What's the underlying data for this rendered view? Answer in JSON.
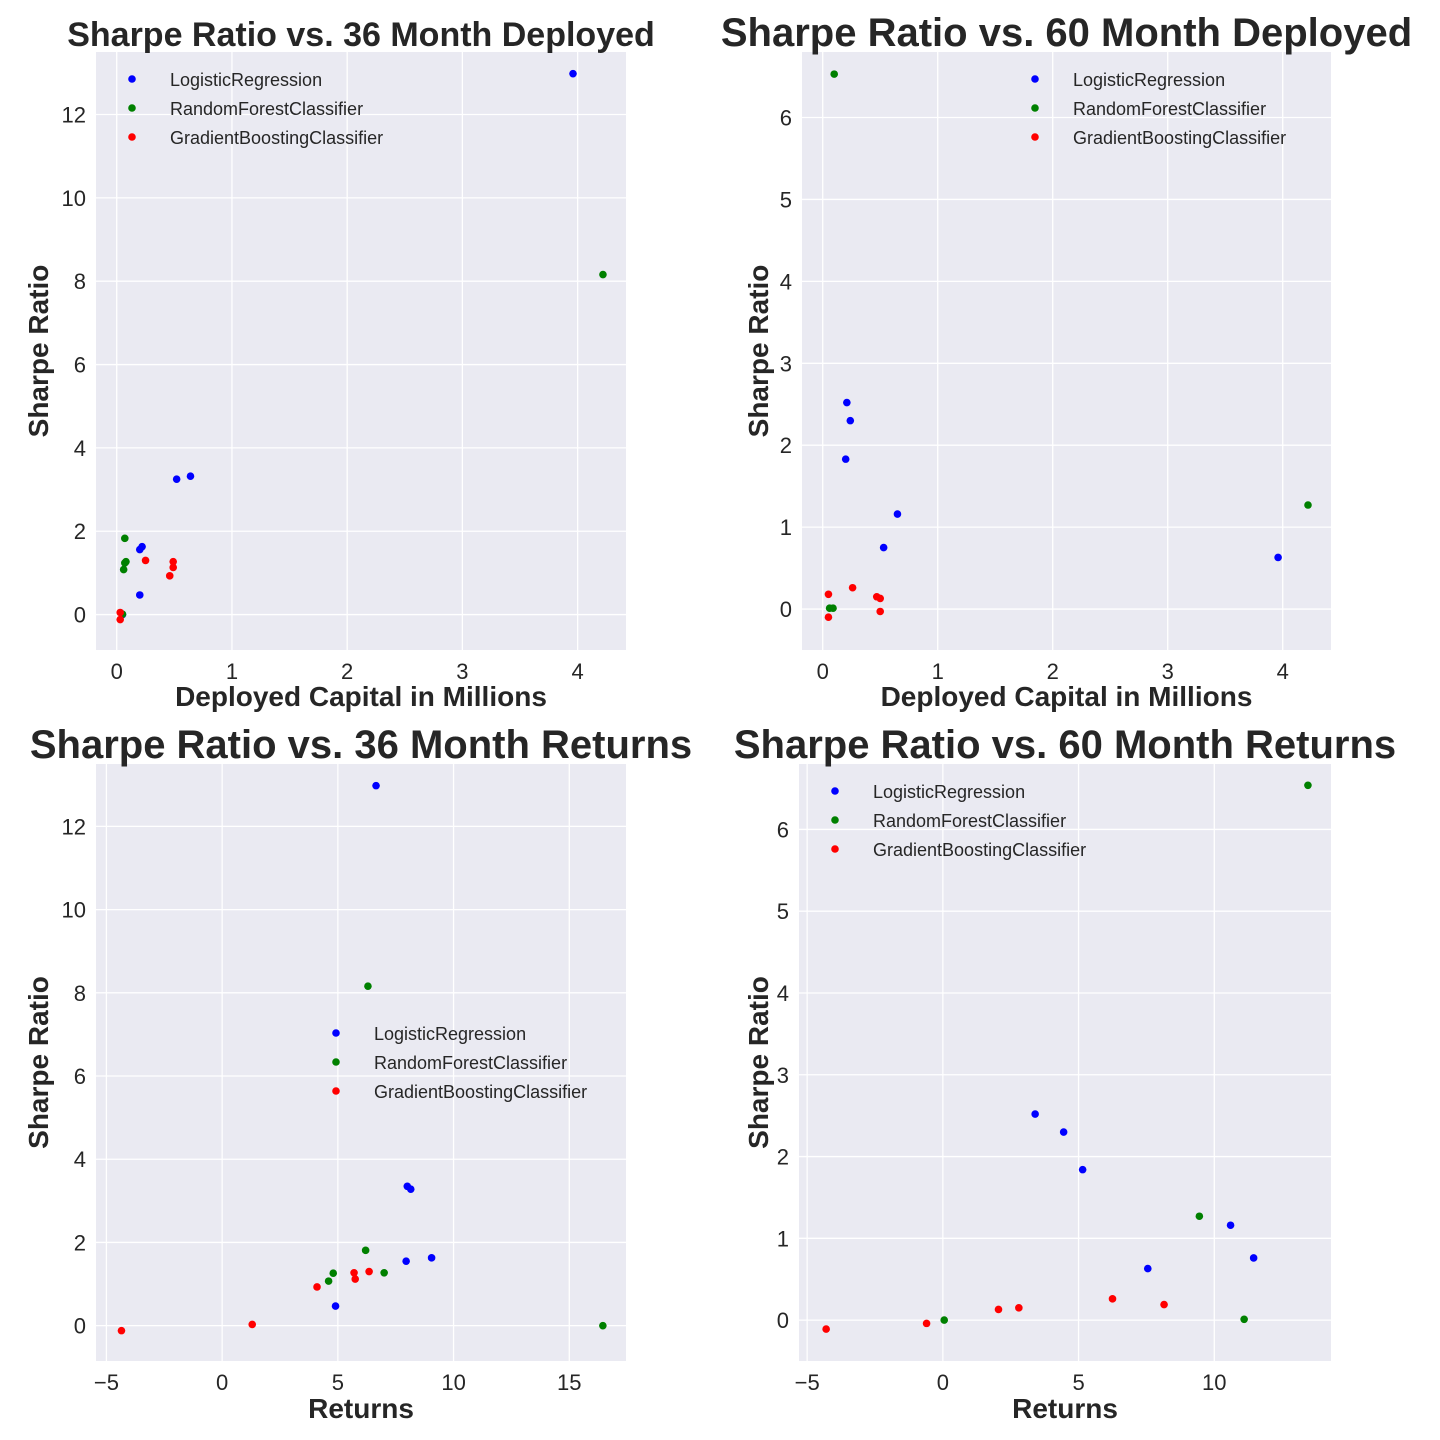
{
  "colors": {
    "LogisticRegression": "#0000ff",
    "RandomForestClassifier": "#008000",
    "GradientBoostingClassifier": "#ff0000"
  },
  "chart_data": [
    {
      "type": "scatter",
      "title": "Sharpe Ratio vs. 36 Month Deployed",
      "xlabel": "Deployed Capital in Millions",
      "ylabel": "Sharpe Ratio",
      "xlim": [
        -0.18,
        4.42
      ],
      "ylim": [
        -0.85,
        13.5
      ],
      "xticks": [
        0,
        1,
        2,
        3,
        4
      ],
      "yticks": [
        0,
        2,
        4,
        6,
        8,
        10,
        12
      ],
      "grid": true,
      "legend_position": "upper-left",
      "series": [
        {
          "name": "LogisticRegression",
          "points": [
            [
              3.96,
              12.98
            ],
            [
              0.52,
              3.25
            ],
            [
              0.64,
              3.32
            ],
            [
              0.22,
              1.63
            ],
            [
              0.2,
              1.56
            ],
            [
              0.2,
              0.47
            ],
            [
              0.05,
              0.0
            ]
          ]
        },
        {
          "name": "RandomForestClassifier",
          "points": [
            [
              4.22,
              8.16
            ],
            [
              0.07,
              1.83
            ],
            [
              0.08,
              1.27
            ],
            [
              0.07,
              1.24
            ],
            [
              0.06,
              1.08
            ],
            [
              0.05,
              0.01
            ]
          ]
        },
        {
          "name": "GradientBoostingClassifier",
          "points": [
            [
              0.25,
              1.3
            ],
            [
              0.49,
              1.27
            ],
            [
              0.49,
              1.13
            ],
            [
              0.46,
              0.93
            ],
            [
              0.03,
              0.05
            ],
            [
              0.03,
              -0.12
            ]
          ]
        }
      ]
    },
    {
      "type": "scatter",
      "title": "Sharpe Ratio vs. 60 Month Deployed",
      "xlabel": "Deployed Capital in Millions",
      "ylabel": "Sharpe Ratio",
      "xlim": [
        -0.18,
        4.42
      ],
      "ylim": [
        -0.5,
        6.8
      ],
      "xticks": [
        0,
        1,
        2,
        3,
        4
      ],
      "yticks": [
        0,
        1,
        2,
        3,
        4,
        5,
        6
      ],
      "grid": true,
      "legend_position": "upper-right",
      "series": [
        {
          "name": "LogisticRegression",
          "points": [
            [
              0.21,
              2.52
            ],
            [
              0.24,
              2.3
            ],
            [
              0.2,
              1.83
            ],
            [
              0.65,
              1.16
            ],
            [
              0.53,
              0.75
            ],
            [
              3.96,
              0.63
            ]
          ]
        },
        {
          "name": "RandomForestClassifier",
          "points": [
            [
              0.1,
              6.53
            ],
            [
              4.22,
              1.27
            ],
            [
              0.06,
              0.01
            ],
            [
              0.09,
              0.01
            ]
          ]
        },
        {
          "name": "GradientBoostingClassifier",
          "points": [
            [
              0.26,
              0.26
            ],
            [
              0.05,
              0.18
            ],
            [
              0.47,
              0.15
            ],
            [
              0.5,
              0.13
            ],
            [
              0.5,
              -0.03
            ],
            [
              0.05,
              -0.1
            ]
          ]
        }
      ]
    },
    {
      "type": "scatter",
      "title": "Sharpe Ratio vs. 36 Month Returns",
      "xlabel": "Returns",
      "ylabel": "Sharpe Ratio",
      "xlim": [
        -5.45,
        17.45
      ],
      "ylim": [
        -0.85,
        13.5
      ],
      "xticks": [
        -5,
        0,
        5,
        10,
        15
      ],
      "yticks": [
        0,
        2,
        4,
        6,
        8,
        10,
        12
      ],
      "grid": true,
      "legend_position": "center-right",
      "series": [
        {
          "name": "LogisticRegression",
          "points": [
            [
              6.65,
              12.98
            ],
            [
              8.0,
              3.35
            ],
            [
              8.15,
              3.28
            ],
            [
              9.05,
              1.63
            ],
            [
              7.95,
              1.55
            ],
            [
              4.9,
              0.47
            ]
          ]
        },
        {
          "name": "RandomForestClassifier",
          "points": [
            [
              6.3,
              8.16
            ],
            [
              6.2,
              1.81
            ],
            [
              7.0,
              1.27
            ],
            [
              4.8,
              1.26
            ],
            [
              4.6,
              1.07
            ],
            [
              16.45,
              0.0
            ]
          ]
        },
        {
          "name": "GradientBoostingClassifier",
          "points": [
            [
              5.7,
              1.27
            ],
            [
              6.35,
              1.3
            ],
            [
              5.75,
              1.12
            ],
            [
              4.1,
              0.93
            ],
            [
              1.3,
              0.03
            ],
            [
              -4.35,
              -0.12
            ]
          ]
        }
      ]
    },
    {
      "type": "scatter",
      "title": "Sharpe Ratio vs. 60 Month Returns",
      "xlabel": "Returns",
      "ylabel": "Sharpe Ratio",
      "xlim": [
        -5.3,
        14.3
      ],
      "ylim": [
        -0.5,
        6.8
      ],
      "xticks": [
        -5,
        0,
        5,
        10
      ],
      "yticks": [
        0,
        1,
        2,
        3,
        4,
        5,
        6
      ],
      "grid": true,
      "legend_position": "upper-left",
      "series": [
        {
          "name": "LogisticRegression",
          "points": [
            [
              3.4,
              2.52
            ],
            [
              4.45,
              2.3
            ],
            [
              5.15,
              1.84
            ],
            [
              10.6,
              1.16
            ],
            [
              11.45,
              0.76
            ],
            [
              7.55,
              0.63
            ]
          ]
        },
        {
          "name": "RandomForestClassifier",
          "points": [
            [
              13.45,
              6.54
            ],
            [
              9.45,
              1.27
            ],
            [
              11.1,
              0.01
            ],
            [
              0.05,
              0.0
            ]
          ]
        },
        {
          "name": "GradientBoostingClassifier",
          "points": [
            [
              6.25,
              0.26
            ],
            [
              8.15,
              0.19
            ],
            [
              2.8,
              0.15
            ],
            [
              2.05,
              0.13
            ],
            [
              -0.6,
              -0.04
            ],
            [
              -4.3,
              -0.11
            ]
          ]
        }
      ]
    }
  ]
}
